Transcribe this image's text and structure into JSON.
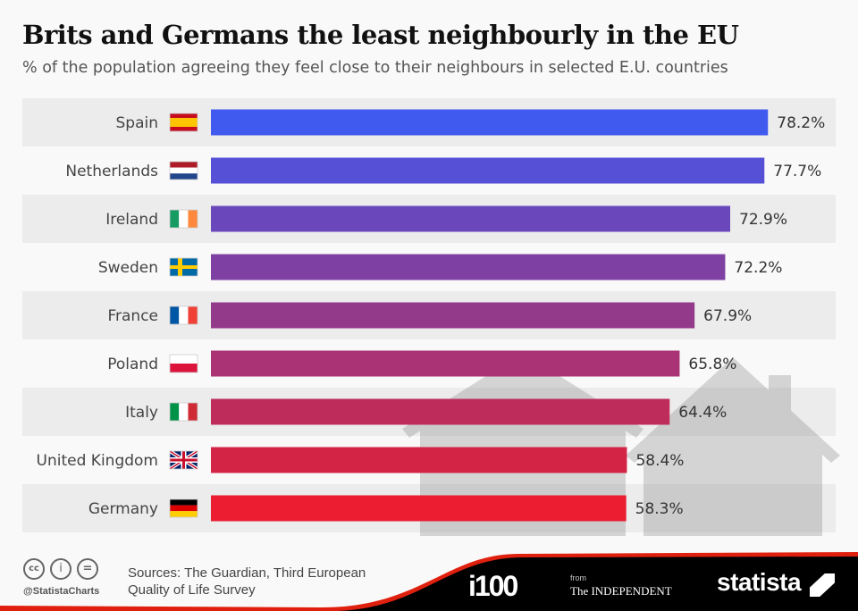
{
  "chart_data": {
    "type": "bar",
    "orientation": "horizontal",
    "title": "Brits and Germans the least neighbourly in the EU",
    "subtitle": "% of the population agreeing they feel close to their neighbours in selected E.U. countries",
    "categories": [
      "Spain",
      "Netherlands",
      "Ireland",
      "Sweden",
      "France",
      "Poland",
      "Italy",
      "United Kingdom",
      "Germany"
    ],
    "values": [
      78.2,
      77.7,
      72.9,
      72.2,
      67.9,
      65.8,
      64.4,
      58.4,
      58.3
    ],
    "value_labels": [
      "78.2%",
      "77.7%",
      "72.9%",
      "72.2%",
      "67.9%",
      "65.8%",
      "64.4%",
      "58.4%",
      "58.3%"
    ],
    "colors": [
      "#4059ee",
      "#5650d6",
      "#6a48bb",
      "#7e41a3",
      "#933a8b",
      "#a93374",
      "#be2c5c",
      "#d42446",
      "#ec1c31"
    ],
    "xlim": [
      0,
      100
    ],
    "grid": false,
    "legend": "none"
  },
  "footer": {
    "handle": "@StatistaCharts",
    "source_line1": "Sources: The Guardian, Third European",
    "source_line2": "Quality of Life Survey",
    "logo_i100": "i100",
    "logo_from": "from",
    "logo_independent": "The INDEPENDENT",
    "logo_statista": "statista"
  }
}
